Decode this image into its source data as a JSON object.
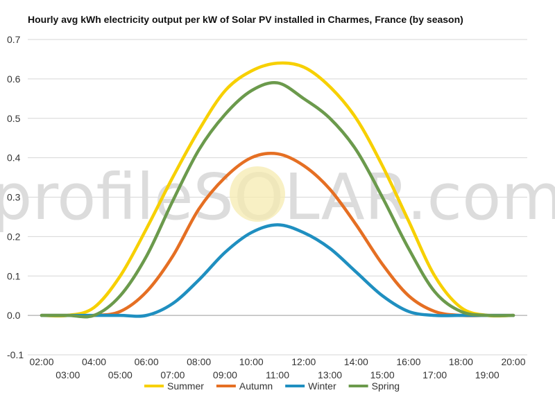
{
  "chart_data": {
    "type": "line",
    "title": "Hourly avg kWh electricity output per kW of Solar PV installed in Charmes, France (by season)",
    "xlabel": "",
    "ylabel": "",
    "ylim": [
      -0.1,
      0.7
    ],
    "yticks": [
      "-0.1",
      "0.0",
      "0.1",
      "0.2",
      "0.3",
      "0.4",
      "0.5",
      "0.6",
      "0.7"
    ],
    "x": [
      "02:00",
      "03:00",
      "04:00",
      "05:00",
      "06:00",
      "07:00",
      "08:00",
      "09:00",
      "10:00",
      "11:00",
      "12:00",
      "13:00",
      "14:00",
      "15:00",
      "16:00",
      "17:00",
      "18:00",
      "19:00",
      "20:00"
    ],
    "grid": true,
    "legend_position": "bottom",
    "series": [
      {
        "name": "Summer",
        "color": "#f7d000",
        "values": [
          0.0,
          0.0,
          0.02,
          0.1,
          0.22,
          0.35,
          0.47,
          0.57,
          0.62,
          0.64,
          0.63,
          0.58,
          0.5,
          0.38,
          0.24,
          0.1,
          0.02,
          0.0,
          0.0
        ]
      },
      {
        "name": "Autumn",
        "color": "#e56f23",
        "values": [
          0.0,
          0.0,
          0.0,
          0.01,
          0.06,
          0.15,
          0.27,
          0.35,
          0.4,
          0.41,
          0.38,
          0.32,
          0.23,
          0.13,
          0.05,
          0.01,
          0.0,
          0.0,
          0.0
        ]
      },
      {
        "name": "Winter",
        "color": "#1f8fc0",
        "values": [
          0.0,
          0.0,
          0.0,
          0.0,
          0.0,
          0.03,
          0.09,
          0.16,
          0.21,
          0.23,
          0.21,
          0.17,
          0.11,
          0.05,
          0.01,
          0.0,
          0.0,
          0.0,
          0.0
        ]
      },
      {
        "name": "Spring",
        "color": "#6b9a4c",
        "values": [
          0.0,
          0.0,
          0.0,
          0.05,
          0.15,
          0.29,
          0.42,
          0.51,
          0.57,
          0.59,
          0.55,
          0.5,
          0.42,
          0.3,
          0.17,
          0.06,
          0.01,
          0.0,
          0.0
        ]
      }
    ]
  },
  "watermark": {
    "text": "profileSOLAR.com",
    "logo": "profilesolar-logo"
  }
}
